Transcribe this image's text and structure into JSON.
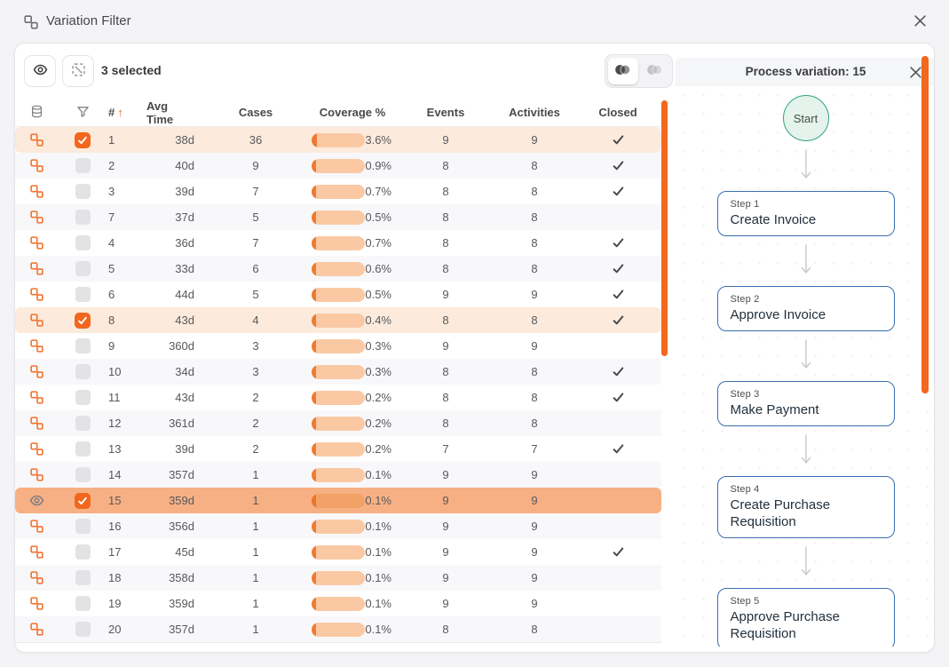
{
  "dialog": {
    "title": "Variation Filter",
    "icon": "variation-icon",
    "close_icon": "close-icon"
  },
  "toolbar": {
    "preview_button_icon": "eye-icon",
    "deselect_button_icon": "deselect-icon",
    "selected_text": "3 selected",
    "view_toggle": {
      "active_icon": "venn-icon",
      "inactive_icon": "venn-outline-icon",
      "active_index": 0
    }
  },
  "table": {
    "header": {
      "source_icon": "database-icon",
      "filter_icon": "filter-icon",
      "number": "#",
      "sort_direction": "asc",
      "avg_time": "Avg Time",
      "cases": "Cases",
      "coverage": "Coverage %",
      "events": "Events",
      "activities": "Activities",
      "closed": "Closed"
    },
    "rows": [
      {
        "icon": "variation-icon",
        "checked": true,
        "num": "1",
        "avg_time": "38d",
        "cases": "36",
        "coverage_pct": "3.6%",
        "coverage_value": 3.6,
        "events": "9",
        "activities": "9",
        "closed": true,
        "state": "highlight"
      },
      {
        "icon": "variation-icon",
        "checked": false,
        "num": "2",
        "avg_time": "40d",
        "cases": "9",
        "coverage_pct": "0.9%",
        "coverage_value": 0.9,
        "events": "8",
        "activities": "8",
        "closed": true,
        "state": ""
      },
      {
        "icon": "variation-icon",
        "checked": false,
        "num": "3",
        "avg_time": "39d",
        "cases": "7",
        "coverage_pct": "0.7%",
        "coverage_value": 0.7,
        "events": "8",
        "activities": "8",
        "closed": true,
        "state": ""
      },
      {
        "icon": "variation-icon",
        "checked": false,
        "num": "7",
        "avg_time": "37d",
        "cases": "5",
        "coverage_pct": "0.5%",
        "coverage_value": 0.5,
        "events": "8",
        "activities": "8",
        "closed": false,
        "state": ""
      },
      {
        "icon": "variation-icon",
        "checked": false,
        "num": "4",
        "avg_time": "36d",
        "cases": "7",
        "coverage_pct": "0.7%",
        "coverage_value": 0.7,
        "events": "8",
        "activities": "8",
        "closed": true,
        "state": ""
      },
      {
        "icon": "variation-icon",
        "checked": false,
        "num": "5",
        "avg_time": "33d",
        "cases": "6",
        "coverage_pct": "0.6%",
        "coverage_value": 0.6,
        "events": "8",
        "activities": "8",
        "closed": true,
        "state": ""
      },
      {
        "icon": "variation-icon",
        "checked": false,
        "num": "6",
        "avg_time": "44d",
        "cases": "5",
        "coverage_pct": "0.5%",
        "coverage_value": 0.5,
        "events": "9",
        "activities": "9",
        "closed": true,
        "state": ""
      },
      {
        "icon": "variation-icon",
        "checked": true,
        "num": "8",
        "avg_time": "43d",
        "cases": "4",
        "coverage_pct": "0.4%",
        "coverage_value": 0.4,
        "events": "8",
        "activities": "8",
        "closed": true,
        "state": "highlight"
      },
      {
        "icon": "variation-icon",
        "checked": false,
        "num": "9",
        "avg_time": "360d",
        "cases": "3",
        "coverage_pct": "0.3%",
        "coverage_value": 0.3,
        "events": "9",
        "activities": "9",
        "closed": false,
        "state": ""
      },
      {
        "icon": "variation-icon",
        "checked": false,
        "num": "10",
        "avg_time": "34d",
        "cases": "3",
        "coverage_pct": "0.3%",
        "coverage_value": 0.3,
        "events": "8",
        "activities": "8",
        "closed": true,
        "state": ""
      },
      {
        "icon": "variation-icon",
        "checked": false,
        "num": "11",
        "avg_time": "43d",
        "cases": "2",
        "coverage_pct": "0.2%",
        "coverage_value": 0.2,
        "events": "8",
        "activities": "8",
        "closed": true,
        "state": ""
      },
      {
        "icon": "variation-icon",
        "checked": false,
        "num": "12",
        "avg_time": "361d",
        "cases": "2",
        "coverage_pct": "0.2%",
        "coverage_value": 0.2,
        "events": "8",
        "activities": "8",
        "closed": false,
        "state": ""
      },
      {
        "icon": "variation-icon",
        "checked": false,
        "num": "13",
        "avg_time": "39d",
        "cases": "2",
        "coverage_pct": "0.2%",
        "coverage_value": 0.2,
        "events": "7",
        "activities": "7",
        "closed": true,
        "state": ""
      },
      {
        "icon": "variation-icon",
        "checked": false,
        "num": "14",
        "avg_time": "357d",
        "cases": "1",
        "coverage_pct": "0.1%",
        "coverage_value": 0.1,
        "events": "9",
        "activities": "9",
        "closed": false,
        "state": ""
      },
      {
        "icon": "eye-icon",
        "checked": true,
        "num": "15",
        "avg_time": "359d",
        "cases": "1",
        "coverage_pct": "0.1%",
        "coverage_value": 0.1,
        "events": "9",
        "activities": "9",
        "closed": false,
        "state": "selected"
      },
      {
        "icon": "variation-icon",
        "checked": false,
        "num": "16",
        "avg_time": "356d",
        "cases": "1",
        "coverage_pct": "0.1%",
        "coverage_value": 0.1,
        "events": "9",
        "activities": "9",
        "closed": false,
        "state": ""
      },
      {
        "icon": "variation-icon",
        "checked": false,
        "num": "17",
        "avg_time": "45d",
        "cases": "1",
        "coverage_pct": "0.1%",
        "coverage_value": 0.1,
        "events": "9",
        "activities": "9",
        "closed": true,
        "state": ""
      },
      {
        "icon": "variation-icon",
        "checked": false,
        "num": "18",
        "avg_time": "358d",
        "cases": "1",
        "coverage_pct": "0.1%",
        "coverage_value": 0.1,
        "events": "9",
        "activities": "9",
        "closed": false,
        "state": ""
      },
      {
        "icon": "variation-icon",
        "checked": false,
        "num": "19",
        "avg_time": "359d",
        "cases": "1",
        "coverage_pct": "0.1%",
        "coverage_value": 0.1,
        "events": "9",
        "activities": "9",
        "closed": false,
        "state": ""
      },
      {
        "icon": "variation-icon",
        "checked": false,
        "num": "20",
        "avg_time": "357d",
        "cases": "1",
        "coverage_pct": "0.1%",
        "coverage_value": 0.1,
        "events": "8",
        "activities": "8",
        "closed": false,
        "state": ""
      }
    ]
  },
  "panel": {
    "title": "Process variation: 15",
    "close_icon": "close-icon",
    "start_label": "Start",
    "steps": [
      {
        "label": "Step 1",
        "name": "Create Invoice"
      },
      {
        "label": "Step 2",
        "name": "Approve Invoice"
      },
      {
        "label": "Step 3",
        "name": "Make Payment"
      },
      {
        "label": "Step 4",
        "name": "Create Purchase Requisition"
      },
      {
        "label": "Step 5",
        "name": "Approve Purchase Requisition"
      }
    ]
  },
  "colors": {
    "accent_orange": "#F2681C",
    "row_highlight": "#FCEBDC",
    "row_selected": "#F7B083",
    "coverage_track": "#FAC9A4",
    "coverage_fill": "#EF7A31",
    "start_fill": "#E4F3EC",
    "start_border": "#35A27F",
    "step_border": "#3A6FB0"
  }
}
